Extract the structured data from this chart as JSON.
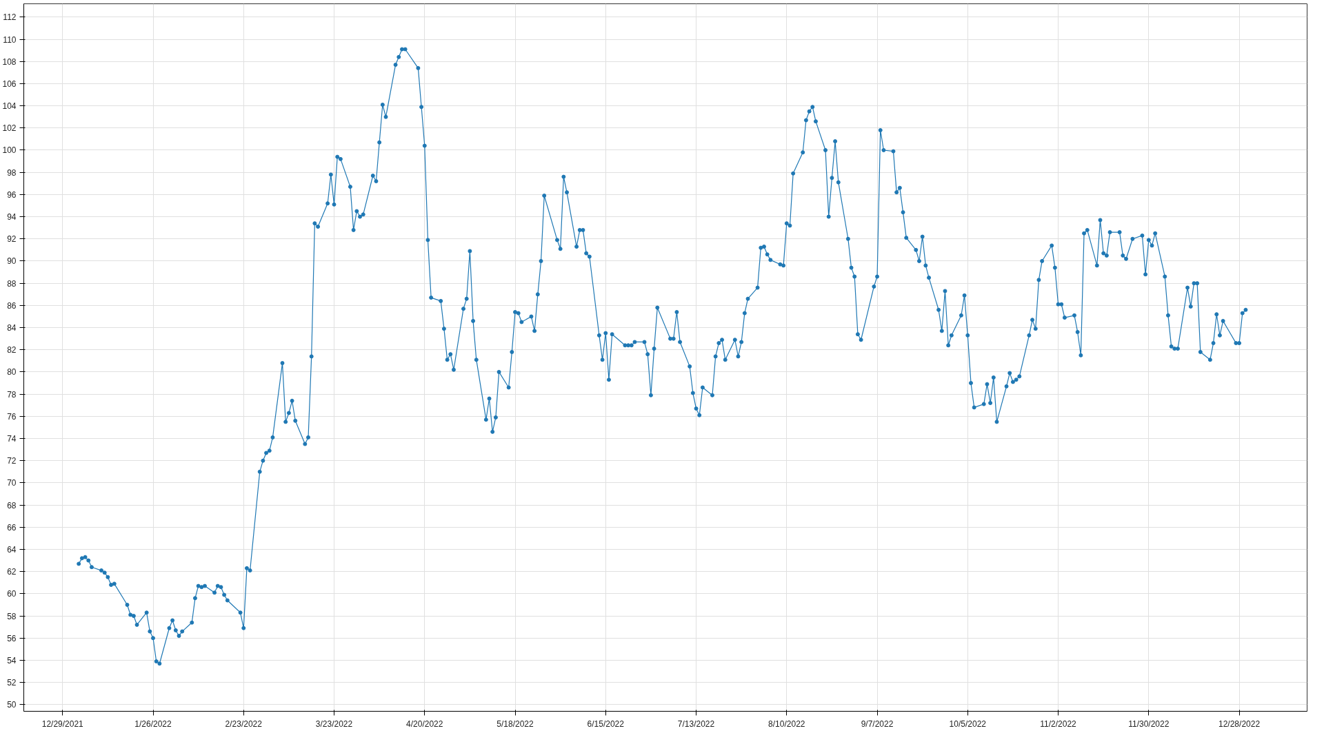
{
  "chart_data": {
    "type": "line",
    "marker": "circle",
    "grid": true,
    "xlim": [
      "2021-12-17",
      "2023-01-18"
    ],
    "ylim": [
      49.4,
      113.2
    ],
    "yticks": [
      50,
      52,
      54,
      56,
      58,
      60,
      62,
      64,
      66,
      68,
      70,
      72,
      74,
      76,
      78,
      80,
      82,
      84,
      86,
      88,
      90,
      92,
      94,
      96,
      98,
      100,
      102,
      104,
      106,
      108,
      110,
      112
    ],
    "xticks": [
      {
        "value": "2021-12-29",
        "label": "12/29/2021"
      },
      {
        "value": "2022-01-26",
        "label": "1/26/2022"
      },
      {
        "value": "2022-02-23",
        "label": "2/23/2022"
      },
      {
        "value": "2022-03-23",
        "label": "3/23/2022"
      },
      {
        "value": "2022-04-20",
        "label": "4/20/2022"
      },
      {
        "value": "2022-05-18",
        "label": "5/18/2022"
      },
      {
        "value": "2022-06-15",
        "label": "6/15/2022"
      },
      {
        "value": "2022-07-13",
        "label": "7/13/2022"
      },
      {
        "value": "2022-08-10",
        "label": "8/10/2022"
      },
      {
        "value": "2022-09-07",
        "label": "9/7/2022"
      },
      {
        "value": "2022-10-05",
        "label": "10/5/2022"
      },
      {
        "value": "2022-11-02",
        "label": "11/2/2022"
      },
      {
        "value": "2022-11-30",
        "label": "11/30/2022"
      },
      {
        "value": "2022-12-28",
        "label": "12/28/2022"
      }
    ],
    "series": [
      {
        "color": "#1f78b4",
        "x": [
          "2022-01-03",
          "2022-01-04",
          "2022-01-05",
          "2022-01-06",
          "2022-01-07",
          "2022-01-10",
          "2022-01-11",
          "2022-01-12",
          "2022-01-13",
          "2022-01-14",
          "2022-01-18",
          "2022-01-19",
          "2022-01-20",
          "2022-01-21",
          "2022-01-24",
          "2022-01-25",
          "2022-01-26",
          "2022-01-27",
          "2022-01-28",
          "2022-01-31",
          "2022-02-01",
          "2022-02-02",
          "2022-02-03",
          "2022-02-04",
          "2022-02-07",
          "2022-02-08",
          "2022-02-09",
          "2022-02-10",
          "2022-02-11",
          "2022-02-14",
          "2022-02-15",
          "2022-02-16",
          "2022-02-17",
          "2022-02-18",
          "2022-02-22",
          "2022-02-23",
          "2022-02-24",
          "2022-02-25",
          "2022-02-28",
          "2022-03-01",
          "2022-03-02",
          "2022-03-03",
          "2022-03-04",
          "2022-03-07",
          "2022-03-08",
          "2022-03-09",
          "2022-03-10",
          "2022-03-11",
          "2022-03-14",
          "2022-03-15",
          "2022-03-16",
          "2022-03-17",
          "2022-03-18",
          "2022-03-21",
          "2022-03-22",
          "2022-03-23",
          "2022-03-24",
          "2022-03-25",
          "2022-03-28",
          "2022-03-29",
          "2022-03-30",
          "2022-03-31",
          "2022-04-01",
          "2022-04-04",
          "2022-04-05",
          "2022-04-06",
          "2022-04-07",
          "2022-04-08",
          "2022-04-11",
          "2022-04-12",
          "2022-04-13",
          "2022-04-14",
          "2022-04-18",
          "2022-04-19",
          "2022-04-20",
          "2022-04-21",
          "2022-04-22",
          "2022-04-25",
          "2022-04-26",
          "2022-04-27",
          "2022-04-28",
          "2022-04-29",
          "2022-05-02",
          "2022-05-03",
          "2022-05-04",
          "2022-05-05",
          "2022-05-06",
          "2022-05-09",
          "2022-05-10",
          "2022-05-11",
          "2022-05-12",
          "2022-05-13",
          "2022-05-16",
          "2022-05-17",
          "2022-05-18",
          "2022-05-19",
          "2022-05-20",
          "2022-05-23",
          "2022-05-24",
          "2022-05-25",
          "2022-05-26",
          "2022-05-27",
          "2022-05-31",
          "2022-06-01",
          "2022-06-02",
          "2022-06-03",
          "2022-06-06",
          "2022-06-07",
          "2022-06-08",
          "2022-06-09",
          "2022-06-10",
          "2022-06-13",
          "2022-06-14",
          "2022-06-15",
          "2022-06-16",
          "2022-06-17",
          "2022-06-21",
          "2022-06-22",
          "2022-06-23",
          "2022-06-24",
          "2022-06-27",
          "2022-06-28",
          "2022-06-29",
          "2022-06-30",
          "2022-07-01",
          "2022-07-05",
          "2022-07-06",
          "2022-07-07",
          "2022-07-08",
          "2022-07-11",
          "2022-07-12",
          "2022-07-13",
          "2022-07-14",
          "2022-07-15",
          "2022-07-18",
          "2022-07-19",
          "2022-07-20",
          "2022-07-21",
          "2022-07-22",
          "2022-07-25",
          "2022-07-26",
          "2022-07-27",
          "2022-07-28",
          "2022-07-29",
          "2022-08-01",
          "2022-08-02",
          "2022-08-03",
          "2022-08-04",
          "2022-08-05",
          "2022-08-08",
          "2022-08-09",
          "2022-08-10",
          "2022-08-11",
          "2022-08-12",
          "2022-08-15",
          "2022-08-16",
          "2022-08-17",
          "2022-08-18",
          "2022-08-19",
          "2022-08-22",
          "2022-08-23",
          "2022-08-24",
          "2022-08-25",
          "2022-08-26",
          "2022-08-29",
          "2022-08-30",
          "2022-08-31",
          "2022-09-01",
          "2022-09-02",
          "2022-09-06",
          "2022-09-07",
          "2022-09-08",
          "2022-09-09",
          "2022-09-12",
          "2022-09-13",
          "2022-09-14",
          "2022-09-15",
          "2022-09-16",
          "2022-09-19",
          "2022-09-20",
          "2022-09-21",
          "2022-09-22",
          "2022-09-23",
          "2022-09-26",
          "2022-09-27",
          "2022-09-28",
          "2022-09-29",
          "2022-09-30",
          "2022-10-03",
          "2022-10-04",
          "2022-10-05",
          "2022-10-06",
          "2022-10-07",
          "2022-10-10",
          "2022-10-11",
          "2022-10-12",
          "2022-10-13",
          "2022-10-14",
          "2022-10-17",
          "2022-10-18",
          "2022-10-19",
          "2022-10-20",
          "2022-10-21",
          "2022-10-24",
          "2022-10-25",
          "2022-10-26",
          "2022-10-27",
          "2022-10-28",
          "2022-10-31",
          "2022-11-01",
          "2022-11-02",
          "2022-11-03",
          "2022-11-04",
          "2022-11-07",
          "2022-11-08",
          "2022-11-09",
          "2022-11-10",
          "2022-11-11",
          "2022-11-14",
          "2022-11-15",
          "2022-11-16",
          "2022-11-17",
          "2022-11-18",
          "2022-11-21",
          "2022-11-22",
          "2022-11-23",
          "2022-11-25",
          "2022-11-28",
          "2022-11-29",
          "2022-11-30",
          "2022-12-01",
          "2022-12-02",
          "2022-12-05",
          "2022-12-06",
          "2022-12-07",
          "2022-12-08",
          "2022-12-09",
          "2022-12-12",
          "2022-12-13",
          "2022-12-14",
          "2022-12-15",
          "2022-12-16",
          "2022-12-19",
          "2022-12-20",
          "2022-12-21",
          "2022-12-22",
          "2022-12-23",
          "2022-12-27",
          "2022-12-28",
          "2022-12-29",
          "2022-12-30"
        ],
        "values": [
          62.7,
          63.2,
          63.3,
          63.0,
          62.4,
          62.1,
          61.9,
          61.5,
          60.8,
          60.9,
          59.0,
          58.1,
          58.0,
          57.2,
          58.3,
          56.6,
          56.0,
          53.9,
          53.7,
          56.9,
          57.6,
          56.7,
          56.2,
          56.6,
          57.4,
          59.6,
          60.7,
          60.6,
          60.7,
          60.1,
          60.7,
          60.6,
          59.9,
          59.4,
          58.3,
          56.9,
          62.3,
          62.1,
          71.0,
          72.0,
          72.7,
          72.9,
          74.1,
          80.8,
          75.5,
          76.3,
          77.4,
          75.6,
          73.5,
          74.1,
          81.4,
          93.4,
          93.1,
          95.2,
          97.8,
          95.1,
          99.4,
          99.2,
          96.7,
          92.8,
          94.5,
          94.0,
          94.2,
          97.7,
          97.2,
          100.7,
          104.1,
          103.0,
          107.7,
          108.4,
          109.1,
          109.1,
          107.4,
          103.9,
          100.4,
          91.9,
          86.7,
          86.4,
          83.9,
          81.1,
          81.6,
          80.2,
          85.7,
          86.6,
          90.9,
          84.6,
          81.1,
          75.7,
          77.6,
          74.6,
          75.9,
          80.0,
          78.6,
          81.8,
          85.4,
          85.3,
          84.5,
          85.0,
          83.7,
          87.0,
          90.0,
          95.9,
          91.9,
          91.1,
          97.6,
          96.2,
          91.3,
          92.8,
          92.8,
          90.7,
          90.4,
          83.3,
          81.1,
          83.5,
          79.3,
          83.4,
          82.4,
          82.4,
          82.4,
          82.7,
          82.7,
          81.6,
          77.9,
          82.1,
          85.8,
          83.0,
          83.0,
          85.4,
          82.7,
          80.5,
          78.1,
          76.7,
          76.1,
          78.6,
          77.9,
          81.4,
          82.6,
          82.9,
          81.1,
          82.9,
          81.4,
          82.7,
          85.3,
          86.6,
          87.6,
          91.2,
          91.3,
          90.6,
          90.1,
          89.7,
          89.6,
          93.4,
          93.2,
          97.9,
          99.8,
          102.7,
          103.5,
          103.9,
          102.6,
          100.0,
          94.0,
          97.5,
          100.8,
          97.1,
          92.0,
          89.4,
          88.6,
          83.4,
          82.9,
          87.7,
          88.6,
          101.8,
          100.0,
          99.9,
          96.2,
          96.6,
          94.4,
          92.1,
          91.0,
          90.0,
          92.2,
          89.6,
          88.5,
          85.6,
          83.7,
          87.3,
          82.4,
          83.3,
          85.1,
          86.9,
          83.3,
          79.0,
          76.8,
          77.1,
          78.9,
          77.2,
          79.5,
          75.5,
          78.7,
          79.9,
          79.1,
          79.3,
          79.6,
          83.3,
          84.7,
          83.9,
          88.3,
          90.0,
          91.4,
          89.4,
          86.1,
          86.1,
          84.9,
          85.1,
          83.6,
          81.5,
          92.5,
          92.8,
          89.6,
          93.7,
          90.7,
          90.5,
          92.6,
          92.6,
          90.5,
          90.2,
          92.0,
          92.3,
          88.8,
          91.9,
          91.4,
          92.5,
          88.6,
          85.1,
          82.3,
          82.1,
          82.1,
          87.6,
          85.9,
          88.0,
          88.0,
          81.8,
          81.1,
          82.6,
          85.2,
          83.3,
          84.6,
          82.6,
          82.6,
          85.3,
          85.6
        ]
      }
    ]
  }
}
